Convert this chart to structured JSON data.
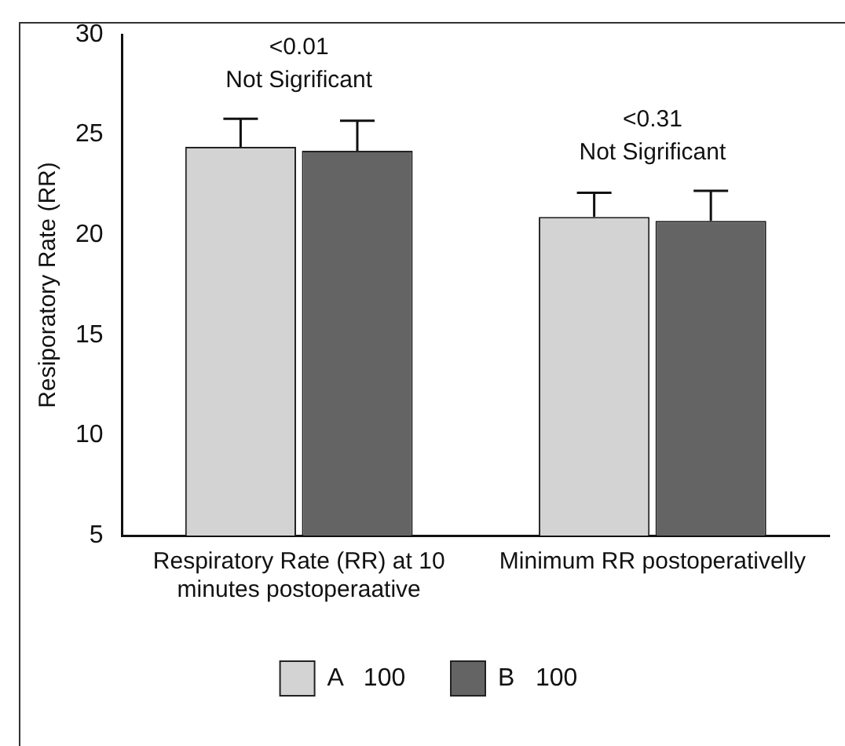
{
  "chart_data": {
    "type": "bar",
    "ylabel": "Resiporatory Rate (RR)",
    "categories": [
      "Respiratory Rate (RR) at 10 minutes postoperaative",
      "Minimum RR postoperativelly"
    ],
    "series": [
      {
        "name": "A   100",
        "color": "#d3d3d3",
        "values": [
          24.4,
          20.9
        ],
        "errors": [
          [
            24.4,
            25.8
          ],
          [
            20.9,
            22.1
          ]
        ]
      },
      {
        "name": "B   100",
        "color": "#646464",
        "values": [
          24.2,
          20.7
        ],
        "errors": [
          [
            24.2,
            25.7
          ],
          [
            20.7,
            22.2
          ]
        ]
      }
    ],
    "ylim": [
      5,
      30
    ],
    "yticks": [
      5,
      10,
      15,
      20,
      25,
      30
    ],
    "grid": false,
    "legend": "bottom",
    "annotations": [
      "<0.01",
      "Not Sigrificant",
      "<0.31",
      "Not Sigrificant"
    ]
  }
}
